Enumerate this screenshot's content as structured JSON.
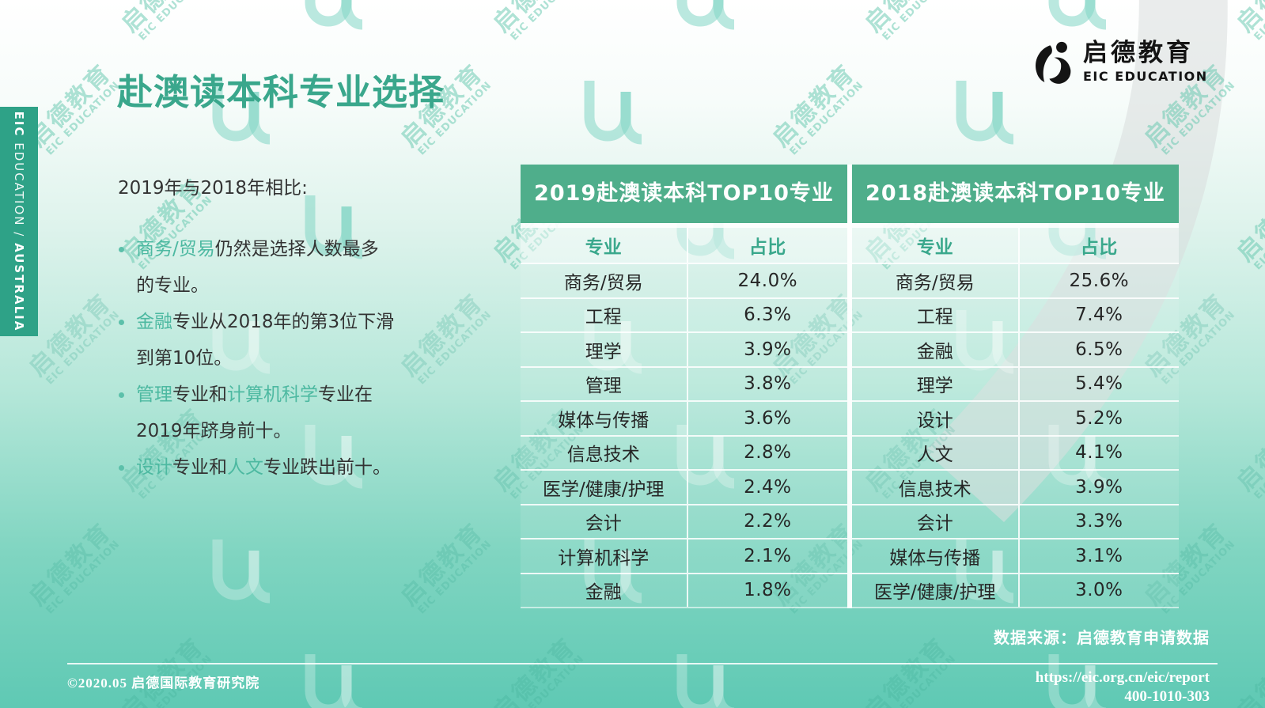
{
  "slide": {
    "title": "赴澳读本科专业选择",
    "intro": "2019年与2018年相比:",
    "bullets": [
      {
        "lines": [
          [
            {
              "t": "商务/贸易",
              "h": 1
            },
            {
              "t": "仍然是选择人数最多",
              "h": 0
            }
          ],
          [
            {
              "t": "的专业。",
              "h": 0
            }
          ]
        ]
      },
      {
        "lines": [
          [
            {
              "t": "金融",
              "h": 1
            },
            {
              "t": "专业从2018年的第3位下滑",
              "h": 0
            }
          ],
          [
            {
              "t": "到第10位。",
              "h": 0
            }
          ]
        ]
      },
      {
        "lines": [
          [
            {
              "t": "管理",
              "h": 1
            },
            {
              "t": "专业和",
              "h": 0
            },
            {
              "t": "计算机科学",
              "h": 1
            },
            {
              "t": "专业在",
              "h": 0
            }
          ],
          [
            {
              "t": "2019年跻身前十。",
              "h": 0
            }
          ]
        ]
      },
      {
        "lines": [
          [
            {
              "t": "设计",
              "h": 1
            },
            {
              "t": "专业和",
              "h": 0
            },
            {
              "t": "人文",
              "h": 1
            },
            {
              "t": "专业跌出前十。",
              "h": 0
            }
          ]
        ]
      }
    ],
    "sidebar_label": {
      "prefix": "EIC",
      "middle": " EDUCATION / ",
      "suffix": "AUSTRALIA"
    },
    "logo": {
      "cn": "启德教育",
      "en": "EIC EDUCATION"
    },
    "watermark": {
      "glyph": "iU",
      "cn": "启德教育",
      "en": "EIC EDUCATION"
    },
    "tables": [
      {
        "title": "2019赴澳读本科TOP10专业",
        "col_major": "专业",
        "col_share": "占比",
        "rows": [
          [
            "商务/贸易",
            "24.0%"
          ],
          [
            "工程",
            "6.3%"
          ],
          [
            "理学",
            "3.9%"
          ],
          [
            "管理",
            "3.8%"
          ],
          [
            "媒体与传播",
            "3.6%"
          ],
          [
            "信息技术",
            "2.8%"
          ],
          [
            "医学/健康/护理",
            "2.4%"
          ],
          [
            "会计",
            "2.2%"
          ],
          [
            "计算机科学",
            "2.1%"
          ],
          [
            "金融",
            "1.8%"
          ]
        ]
      },
      {
        "title": "2018赴澳读本科TOP10专业",
        "col_major": "专业",
        "col_share": "占比",
        "rows": [
          [
            "商务/贸易",
            "25.6%"
          ],
          [
            "工程",
            "7.4%"
          ],
          [
            "金融",
            "6.5%"
          ],
          [
            "理学",
            "5.4%"
          ],
          [
            "设计",
            "5.2%"
          ],
          [
            "人文",
            "4.1%"
          ],
          [
            "信息技术",
            "3.9%"
          ],
          [
            "会计",
            "3.3%"
          ],
          [
            "媒体与传播",
            "3.1%"
          ],
          [
            "医学/健康/护理",
            "3.0%"
          ]
        ]
      }
    ],
    "footer": {
      "source": "数据来源：启德教育申请数据",
      "copyright": "©2020.05 启德国际教育研究院",
      "url": "https://eic.org.cn/eic/report",
      "phone": "400-1010-303"
    },
    "colors": {
      "accent": "#3aa78c",
      "banner_green": "#4fae8b",
      "sidebar_green": "#2ea287",
      "highlight_teal": "#4db9a1",
      "background_bottom": "#5fc9b4",
      "text_dark": "#333333"
    }
  },
  "chart_data": [
    {
      "type": "table",
      "title": "2019赴澳读本科TOP10专业",
      "columns": [
        "专业",
        "占比"
      ],
      "rows": [
        [
          "商务/贸易",
          "24.0%"
        ],
        [
          "工程",
          "6.3%"
        ],
        [
          "理学",
          "3.9%"
        ],
        [
          "管理",
          "3.8%"
        ],
        [
          "媒体与传播",
          "3.6%"
        ],
        [
          "信息技术",
          "2.8%"
        ],
        [
          "医学/健康/护理",
          "2.4%"
        ],
        [
          "会计",
          "2.2%"
        ],
        [
          "计算机科学",
          "2.1%"
        ],
        [
          "金融",
          "1.8%"
        ]
      ]
    },
    {
      "type": "table",
      "title": "2018赴澳读本科TOP10专业",
      "columns": [
        "专业",
        "占比"
      ],
      "rows": [
        [
          "商务/贸易",
          "25.6%"
        ],
        [
          "工程",
          "7.4%"
        ],
        [
          "金融",
          "6.5%"
        ],
        [
          "理学",
          "5.4%"
        ],
        [
          "设计",
          "5.2%"
        ],
        [
          "人文",
          "4.1%"
        ],
        [
          "信息技术",
          "3.9%"
        ],
        [
          "会计",
          "3.3%"
        ],
        [
          "媒体与传播",
          "3.1%"
        ],
        [
          "医学/健康/护理",
          "3.0%"
        ]
      ]
    }
  ]
}
